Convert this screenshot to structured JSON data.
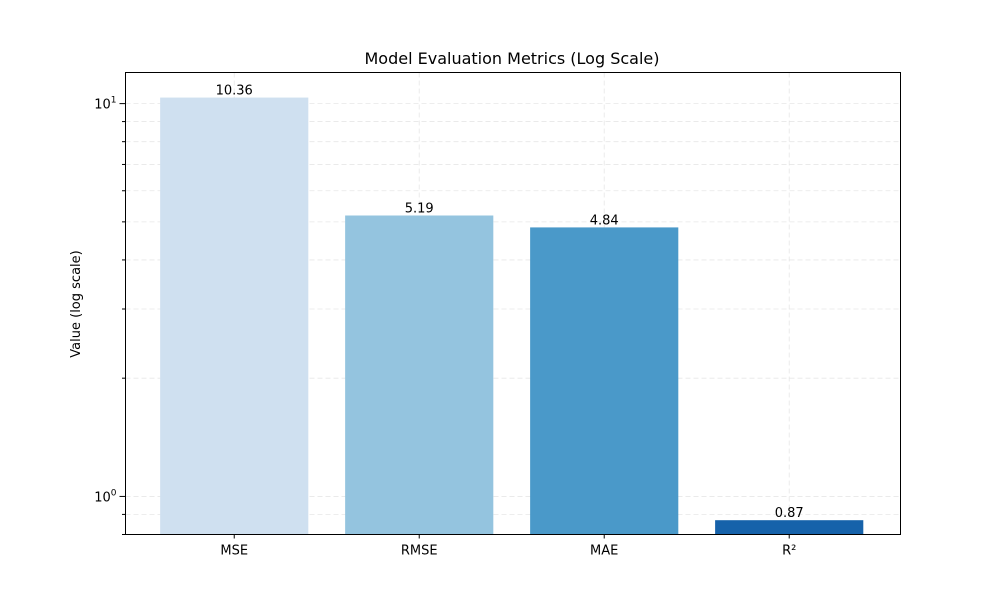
{
  "chart_data": {
    "type": "bar",
    "title": "Model Evaluation Metrics (Log Scale)",
    "xlabel": "",
    "ylabel": "Value (log scale)",
    "yscale": "log",
    "ylim": [
      0.8,
      12
    ],
    "grid": true,
    "categories": [
      "MSE",
      "RMSE",
      "MAE",
      "R²"
    ],
    "values": [
      10.36,
      5.19,
      4.84,
      0.87
    ],
    "value_labels": [
      "10.36",
      "5.19",
      "4.84",
      "0.87"
    ],
    "colors": [
      "#cfe0f0",
      "#94c4df",
      "#4a99c9",
      "#1662aa"
    ],
    "yticks_major": [
      {
        "value": 1,
        "base": "10",
        "exp": "0"
      },
      {
        "value": 10,
        "base": "10",
        "exp": "1"
      }
    ],
    "yticks_minor": [
      0.8,
      0.9,
      2,
      3,
      4,
      5,
      6,
      7,
      8,
      9
    ]
  }
}
